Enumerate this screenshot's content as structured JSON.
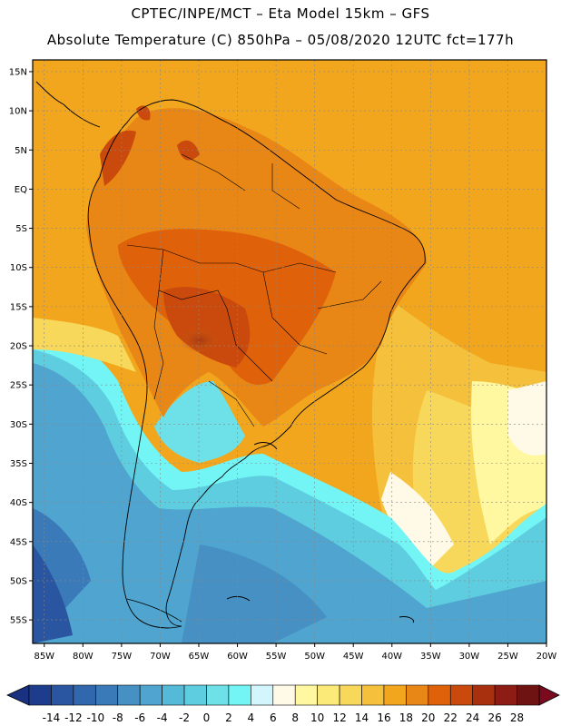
{
  "header": {
    "line1": "CPTEC/INPE/MCT –   Eta Model 15km – GFS",
    "line2": "Absolute Temperature (C) 850hPa – 05/08/2020 12UTC fct=177h"
  },
  "map": {
    "lat_labels": [
      "15N",
      "10N",
      "5N",
      "EQ",
      "5S",
      "10S",
      "15S",
      "20S",
      "25S",
      "30S",
      "35S",
      "40S",
      "45S",
      "50S",
      "55S"
    ],
    "lat_values": [
      15,
      10,
      5,
      0,
      -5,
      -10,
      -15,
      -20,
      -25,
      -30,
      -35,
      -40,
      -45,
      -50,
      -55
    ],
    "lon_labels": [
      "85W",
      "80W",
      "75W",
      "70W",
      "65W",
      "60W",
      "55W",
      "50W",
      "45W",
      "40W",
      "35W",
      "30W",
      "25W",
      "20W"
    ],
    "lon_values": [
      -85,
      -80,
      -75,
      -70,
      -65,
      -60,
      -55,
      -50,
      -45,
      -40,
      -35,
      -30,
      -25,
      -20
    ],
    "lat_range": [
      -58,
      16.5
    ],
    "lon_range": [
      -86.5,
      -20
    ]
  },
  "colorbar": {
    "labels": [
      "-14",
      "-12",
      "-10",
      "-8",
      "-6",
      "-4",
      "-2",
      "0",
      "2",
      "4",
      "6",
      "8",
      "10",
      "12",
      "14",
      "16",
      "18",
      "20",
      "22",
      "24",
      "26",
      "28"
    ],
    "colors": [
      "#1e3c8c",
      "#2a55a0",
      "#3168ad",
      "#3a7ab8",
      "#4690c4",
      "#4fa5cf",
      "#54bad8",
      "#5fcde0",
      "#6ee0e8",
      "#73f5f5",
      "#d2f6fb",
      "#fff9e8",
      "#fff8a0",
      "#fbe978",
      "#f8d85a",
      "#f5c13c",
      "#f2a61e",
      "#e98716",
      "#df620a",
      "#c94a0c",
      "#a9300e",
      "#8c1c14",
      "#6e1212"
    ],
    "low_color": "#1a3080",
    "high_color": "#7a0a1e"
  }
}
